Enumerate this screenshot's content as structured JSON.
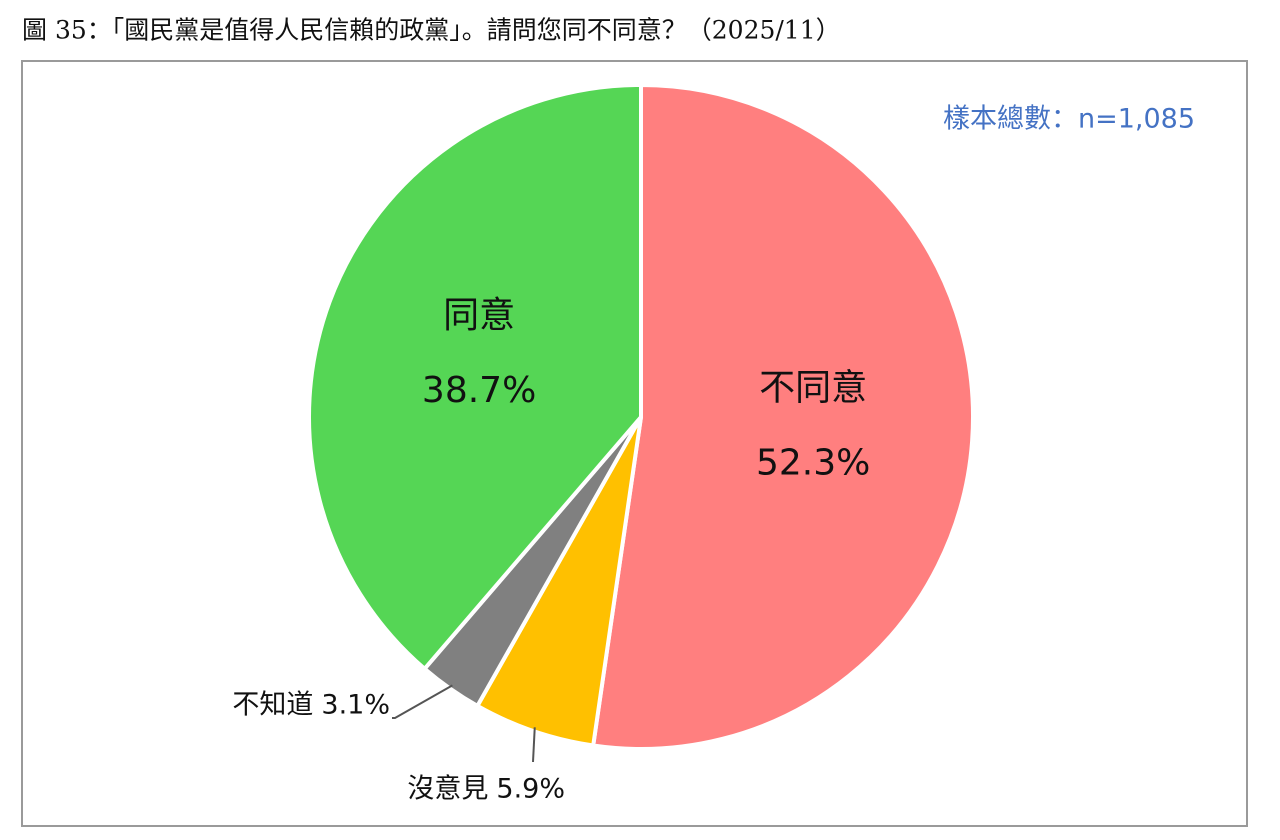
{
  "chart_data": {
    "type": "pie",
    "title": "圖 35：「國民黨是值得人民信賴的政黨」。請問您同不同意？（2025/11）",
    "annotation": "樣本總數：n=1,085",
    "categories": [
      "不同意",
      "沒意見",
      "不知道",
      "同意"
    ],
    "values": [
      52.3,
      5.9,
      3.1,
      38.7
    ],
    "value_labels": [
      "52.3%",
      "5.9%",
      "3.1%",
      "38.7%"
    ],
    "colors": [
      "#ff7f7f",
      "#ffc000",
      "#808080",
      "#55d655"
    ]
  }
}
